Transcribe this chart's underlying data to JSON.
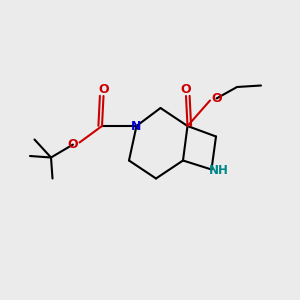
{
  "bg_color": "#ebebeb",
  "bond_color": "#000000",
  "bond_width": 1.5,
  "N_color": "#0000cc",
  "O_color": "#cc0000",
  "NH_color": "#008888",
  "figsize": [
    3.0,
    3.0
  ],
  "dpi": 100,
  "xlim": [
    0,
    10
  ],
  "ylim": [
    0,
    10
  ]
}
